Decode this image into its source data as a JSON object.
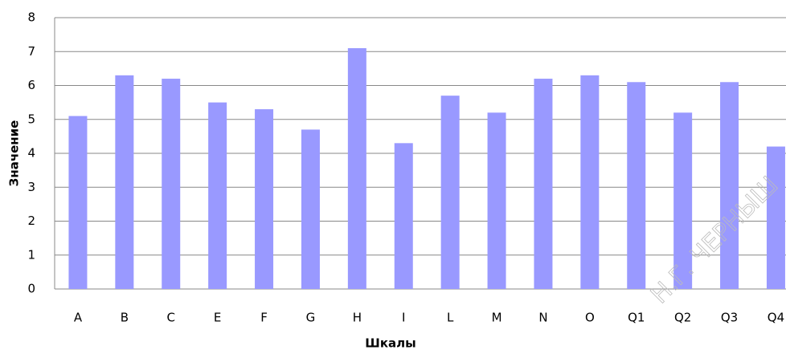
{
  "chart_data": {
    "type": "bar",
    "categories": [
      "A",
      "B",
      "C",
      "E",
      "F",
      "G",
      "H",
      "I",
      "L",
      "M",
      "N",
      "O",
      "Q1",
      "Q2",
      "Q3",
      "Q4"
    ],
    "values": [
      5.1,
      6.3,
      6.2,
      5.5,
      5.3,
      4.7,
      7.1,
      4.3,
      5.7,
      5.2,
      6.2,
      6.3,
      6.1,
      5.2,
      6.1,
      4.2
    ],
    "color": "#9999ff",
    "ylim": [
      0,
      8
    ],
    "yticks": [
      0,
      1,
      2,
      3,
      4,
      5,
      6,
      7,
      8
    ],
    "grid": true,
    "xlabel": "Шкалы",
    "ylabel": "Значение",
    "watermark": "Н.Г. ЧЕРНЫШ"
  }
}
